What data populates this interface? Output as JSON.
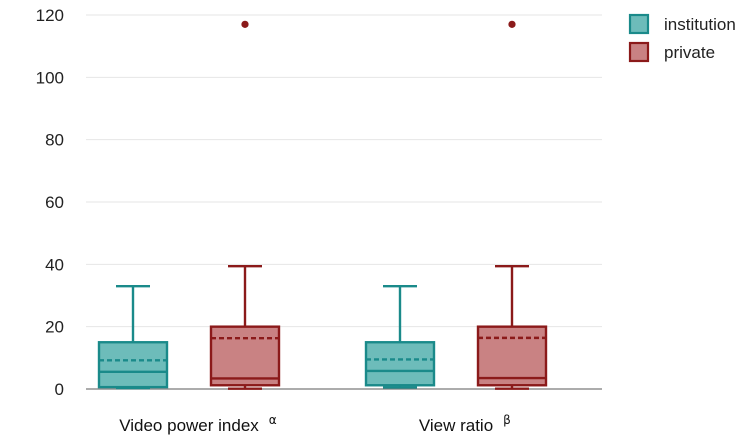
{
  "chart_data": {
    "type": "box",
    "title": "",
    "xlabel": "",
    "ylabel": "",
    "ylim": [
      0,
      120
    ],
    "yticks": [
      0,
      20,
      40,
      60,
      80,
      100,
      120
    ],
    "grid": "horizontal",
    "legend_position": "top-right",
    "categories": [
      {
        "label": "Video power index",
        "superscript": "α"
      },
      {
        "label": "View ratio",
        "superscript": "β"
      }
    ],
    "series": [
      {
        "name": "institution",
        "fill": "#6dbcba",
        "stroke": "#1a8a8a",
        "boxes": [
          {
            "whisker_low": 0.3,
            "q1": 0.6,
            "median": 5.5,
            "mean": 9.2,
            "q3": 15,
            "whisker_high": 33,
            "outliers": []
          },
          {
            "whisker_low": 0.5,
            "q1": 1.2,
            "median": 5.8,
            "mean": 9.5,
            "q3": 15,
            "whisker_high": 33,
            "outliers": []
          }
        ]
      },
      {
        "name": "private",
        "fill": "#c98283",
        "stroke": "#8b1a1a",
        "boxes": [
          {
            "whisker_low": 0.1,
            "q1": 1.2,
            "median": 3.4,
            "mean": 16.3,
            "q3": 20,
            "whisker_high": 39.4,
            "outliers": [
              117
            ]
          },
          {
            "whisker_low": 0.1,
            "q1": 1.2,
            "median": 3.5,
            "mean": 16.4,
            "q3": 20,
            "whisker_high": 39.4,
            "outliers": [
              117
            ]
          }
        ]
      }
    ]
  }
}
